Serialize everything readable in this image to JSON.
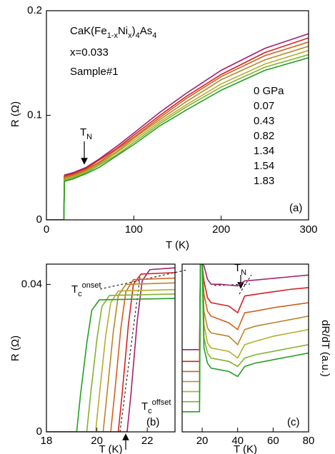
{
  "chart_data": [
    {
      "type": "line",
      "x_label": "T (K)",
      "y_label": "R (Ω)",
      "panel_label": "(a)",
      "xlim": [
        0,
        300
      ],
      "ylim": [
        0,
        0.2
      ],
      "xticks": [
        0,
        100,
        200,
        300
      ],
      "yticks": [
        0,
        0.1,
        0.2
      ],
      "annotations": [
        {
          "parts": [
            {
              "text": "CaK(Fe"
            },
            {
              "text": "1-x",
              "shift": "sub"
            },
            {
              "text": "Ni"
            },
            {
              "text": "x",
              "shift": "sub"
            },
            {
              "text": ")"
            },
            {
              "text": "4",
              "shift": "sub"
            },
            {
              "text": "As"
            },
            {
              "text": "4",
              "shift": "sub"
            }
          ]
        },
        {
          "parts": [
            {
              "text": "x=0.033"
            }
          ]
        },
        {
          "parts": [
            {
              "text": "Sample#1"
            }
          ]
        },
        {
          "parts": [
            {
              "text": "T"
            },
            {
              "text": "N",
              "shift": "sub"
            }
          ]
        }
      ],
      "x": [
        0,
        20,
        20.5,
        21,
        30,
        45,
        60,
        80,
        100,
        130,
        160,
        200,
        250,
        300
      ],
      "series": [
        {
          "name": "0 GPa",
          "color": "#a3206f",
          "values": [
            0,
            0,
            0.042,
            0.043,
            0.045,
            0.05,
            0.058,
            0.07,
            0.083,
            0.103,
            0.121,
            0.143,
            0.164,
            0.178
          ]
        },
        {
          "name": "0.07",
          "color": "#d42222",
          "values": [
            0,
            0,
            0.041,
            0.042,
            0.044,
            0.049,
            0.057,
            0.068,
            0.081,
            0.1,
            0.118,
            0.139,
            0.16,
            0.174
          ]
        },
        {
          "name": "0.43",
          "color": "#d0621c",
          "values": [
            0,
            0,
            0.04,
            0.041,
            0.043,
            0.048,
            0.055,
            0.067,
            0.079,
            0.098,
            0.116,
            0.137,
            0.157,
            0.17
          ]
        },
        {
          "name": "0.82",
          "color": "#b8862c",
          "values": [
            0,
            0,
            0.039,
            0.04,
            0.042,
            0.047,
            0.054,
            0.065,
            0.078,
            0.096,
            0.113,
            0.134,
            0.153,
            0.166
          ]
        },
        {
          "name": "1.34",
          "color": "#b5ad2e",
          "values": [
            0,
            0,
            0.038,
            0.039,
            0.041,
            0.046,
            0.053,
            0.064,
            0.076,
            0.094,
            0.11,
            0.13,
            0.149,
            0.162
          ]
        },
        {
          "name": "1.54",
          "color": "#82b230",
          "values": [
            0,
            0,
            0.037,
            0.038,
            0.04,
            0.045,
            0.052,
            0.062,
            0.074,
            0.092,
            0.108,
            0.127,
            0.146,
            0.158
          ]
        },
        {
          "name": "1.83",
          "color": "#22a022",
          "values": [
            0,
            0,
            0.036,
            0.037,
            0.039,
            0.044,
            0.05,
            0.061,
            0.072,
            0.09,
            0.105,
            0.124,
            0.143,
            0.155
          ]
        }
      ]
    },
    {
      "type": "line",
      "x_label": "T (K)",
      "y_label": "R (Ω)",
      "panel_label": "(b)",
      "xlim": [
        18,
        23.1
      ],
      "ylim": [
        0,
        0.0455
      ],
      "xticks": [
        18,
        20,
        22
      ],
      "yticks": [
        0,
        0.04
      ],
      "annotations": [
        {
          "parts": [
            {
              "text": "T"
            },
            {
              "text": "c",
              "shift": "sub"
            },
            {
              "text": "onset",
              "shift": "super"
            }
          ]
        },
        {
          "parts": [
            {
              "text": "T"
            },
            {
              "text": "c",
              "shift": "sub"
            },
            {
              "text": "offset",
              "shift": "super"
            }
          ]
        }
      ],
      "series": [
        {
          "color": "#a3206f",
          "x": [
            18,
            21.2,
            21.35,
            21.6,
            21.8,
            22.1,
            23.1
          ],
          "values": [
            0,
            0,
            0.01,
            0.03,
            0.041,
            0.044,
            0.0445
          ]
        },
        {
          "color": "#d42222",
          "x": [
            18,
            20.85,
            21.0,
            21.25,
            21.45,
            21.75,
            23.1
          ],
          "values": [
            0,
            0,
            0.01,
            0.029,
            0.04,
            0.0428,
            0.0432
          ]
        },
        {
          "color": "#d0621c",
          "x": [
            18,
            20.55,
            20.7,
            20.95,
            21.15,
            21.45,
            23.1
          ],
          "values": [
            0,
            0,
            0.01,
            0.028,
            0.038,
            0.0413,
            0.0417
          ]
        },
        {
          "color": "#b8862c",
          "x": [
            18,
            20.25,
            20.4,
            20.65,
            20.85,
            21.15,
            23.1
          ],
          "values": [
            0,
            0,
            0.01,
            0.027,
            0.037,
            0.04,
            0.0404
          ]
        },
        {
          "color": "#b5ad2e",
          "x": [
            18,
            19.95,
            20.1,
            20.35,
            20.55,
            20.85,
            23.1
          ],
          "values": [
            0,
            0,
            0.01,
            0.026,
            0.035,
            0.0382,
            0.0386
          ]
        },
        {
          "color": "#82b230",
          "x": [
            18,
            19.6,
            19.75,
            20.0,
            20.2,
            20.5,
            23.1
          ],
          "values": [
            0,
            0,
            0.01,
            0.025,
            0.034,
            0.037,
            0.0374
          ]
        },
        {
          "color": "#22a022",
          "x": [
            18,
            19.2,
            19.35,
            19.6,
            19.8,
            20.1,
            23.1
          ],
          "values": [
            0,
            0,
            0.01,
            0.024,
            0.033,
            0.0358,
            0.0362
          ]
        }
      ]
    },
    {
      "type": "line",
      "x_label": "T (K)",
      "y_label": "dR/dT (a.u.)",
      "panel_label": "(c)",
      "xlim": [
        8.7,
        80
      ],
      "ylim": [
        0,
        10
      ],
      "xticks": [
        20,
        40,
        60,
        80
      ],
      "annotations": [
        {
          "parts": [
            {
              "text": "T"
            },
            {
              "text": "N",
              "shift": "sub"
            }
          ]
        }
      ],
      "x": [
        9,
        18.5,
        19,
        20,
        21,
        23,
        25,
        30,
        35,
        40,
        44,
        50,
        60,
        70,
        80
      ],
      "series": [
        {
          "color": "#a3206f",
          "values": [
            4.9,
            4.9,
            10,
            10,
            9.9,
            9.1,
            8.8,
            8.8,
            8.75,
            8.7,
            9.0,
            9.05,
            9.15,
            9.25,
            9.35
          ]
        },
        {
          "color": "#d42222",
          "values": [
            4.2,
            4.2,
            10,
            10,
            9.0,
            8.0,
            7.7,
            7.6,
            7.5,
            7.1,
            8.1,
            8.2,
            8.35,
            8.5,
            8.6
          ]
        },
        {
          "color": "#d0621c",
          "values": [
            3.6,
            3.6,
            10,
            10,
            8.2,
            7.2,
            6.9,
            6.7,
            6.5,
            6.1,
            7.1,
            7.2,
            7.4,
            7.55,
            7.7
          ]
        },
        {
          "color": "#b8862c",
          "values": [
            3.0,
            3.0,
            10,
            10,
            7.2,
            6.2,
            5.9,
            5.8,
            5.7,
            5.2,
            6.1,
            6.3,
            6.5,
            6.7,
            6.9
          ]
        },
        {
          "color": "#b5ad2e",
          "values": [
            2.4,
            2.4,
            10,
            10,
            6.4,
            5.3,
            5.0,
            4.9,
            4.8,
            4.4,
            5.2,
            5.4,
            5.7,
            5.9,
            6.1
          ]
        },
        {
          "color": "#82b230",
          "values": [
            1.8,
            1.8,
            10,
            10,
            5.6,
            4.7,
            4.4,
            4.3,
            4.2,
            3.9,
            4.4,
            4.6,
            4.8,
            5.0,
            5.2
          ]
        },
        {
          "color": "#22a022",
          "values": [
            1.2,
            1.2,
            10,
            10,
            5.0,
            4.1,
            3.8,
            3.7,
            3.6,
            3.3,
            3.9,
            4.1,
            4.3,
            4.5,
            4.7
          ]
        }
      ]
    }
  ]
}
